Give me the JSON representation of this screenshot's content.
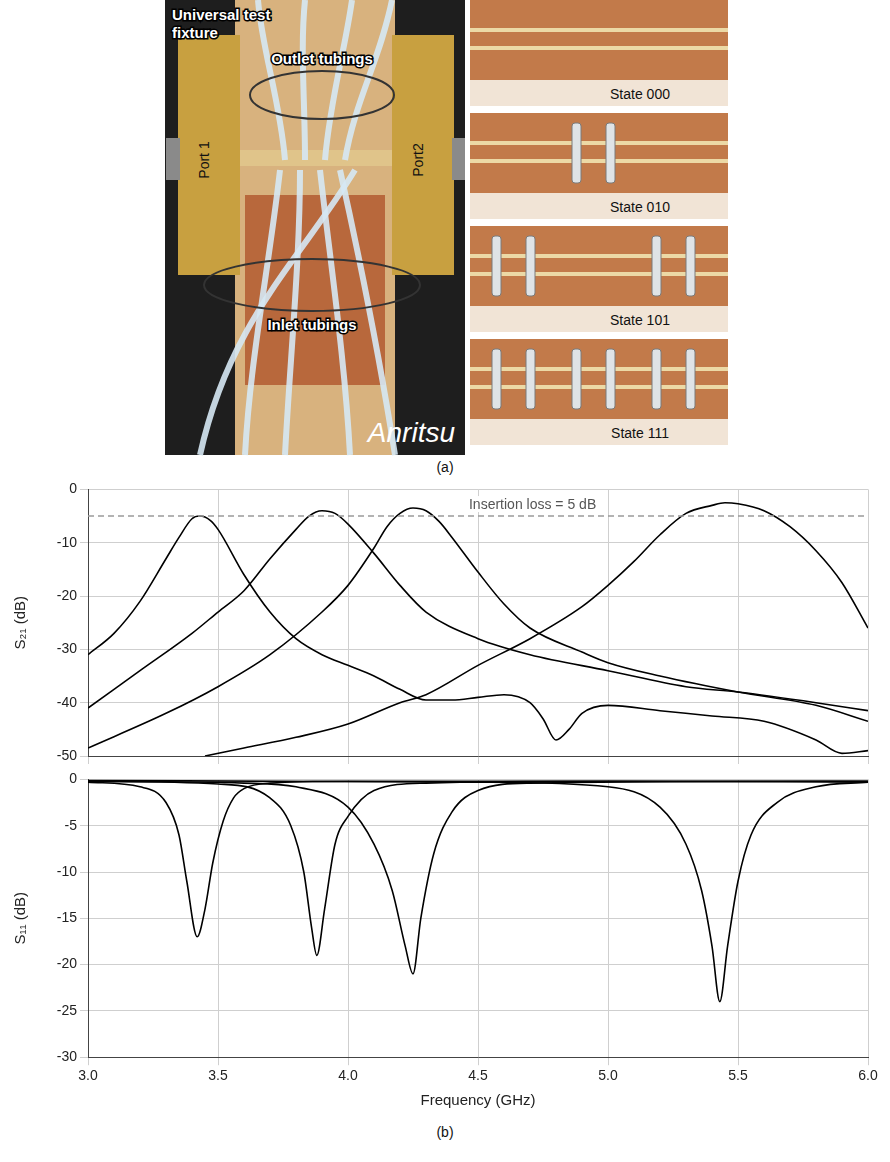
{
  "panel_a": {
    "label": "(a)",
    "photo_labels": {
      "fixture": "Universal test fixture",
      "outlet": "Outlet tubings",
      "inlet": "Inlet tubings",
      "port1": "Port 1",
      "port2": "Port2",
      "brand": "Anritsu"
    },
    "states": [
      "State 000",
      "State 010",
      "State 101",
      "State 111"
    ]
  },
  "panel_b": {
    "label": "(b)"
  },
  "chart_data": [
    {
      "type": "line",
      "ylabel": "S₂₁ (dB)",
      "xlim": [
        3,
        6
      ],
      "xticks": [
        3,
        3.5,
        4,
        4.5,
        5,
        5.5,
        6
      ],
      "ylim": [
        -50,
        0
      ],
      "yticks": [
        -50,
        -40,
        -30,
        -20,
        -10,
        0
      ],
      "grid": true,
      "tick_labels": "y",
      "annotations": [
        {
          "text": "Insertion loss = 5 dB",
          "y": -5,
          "line_style": "dashed"
        }
      ],
      "series": [
        {
          "color": "#000000",
          "line_style": "solid",
          "x": [
            3.0,
            3.1,
            3.2,
            3.3,
            3.35,
            3.4,
            3.43,
            3.47,
            3.5,
            3.6,
            3.7,
            3.8,
            3.9,
            4.0,
            4.1,
            4.2,
            4.3,
            4.4,
            4.5,
            4.6,
            4.7,
            4.75,
            4.8,
            4.85,
            4.9,
            5.0,
            5.2,
            5.4,
            5.6,
            5.8,
            5.9,
            6.0
          ],
          "values": [
            -31,
            -27,
            -21,
            -13,
            -9,
            -5.5,
            -5,
            -5.8,
            -7.5,
            -16,
            -23,
            -28,
            -31,
            -33,
            -35,
            -37.5,
            -39.5,
            -39.5,
            -39,
            -38.5,
            -40,
            -43,
            -47,
            -45,
            -42,
            -40.5,
            -41.5,
            -42.5,
            -43.5,
            -47,
            -49.5,
            -49
          ]
        },
        {
          "color": "#000000",
          "line_style": "solid",
          "x": [
            3.0,
            3.2,
            3.4,
            3.5,
            3.6,
            3.7,
            3.8,
            3.85,
            3.9,
            3.95,
            4.0,
            4.1,
            4.2,
            4.3,
            4.5,
            4.7,
            5.0,
            5.3,
            5.5,
            5.8,
            6.0
          ],
          "values": [
            -41,
            -34,
            -27,
            -23,
            -19,
            -13,
            -7.5,
            -5,
            -4,
            -4.5,
            -6.5,
            -12,
            -18,
            -23,
            -28,
            -31,
            -34,
            -37,
            -38,
            -40,
            -41.5
          ]
        },
        {
          "color": "#000000",
          "line_style": "solid",
          "x": [
            3.0,
            3.3,
            3.5,
            3.7,
            3.9,
            4.0,
            4.1,
            4.15,
            4.2,
            4.25,
            4.3,
            4.35,
            4.4,
            4.5,
            4.6,
            4.7,
            4.9,
            5.0,
            5.2,
            5.5,
            5.8,
            6.0
          ],
          "values": [
            -48.5,
            -42,
            -37,
            -31,
            -23,
            -18,
            -11,
            -7,
            -4.5,
            -3.5,
            -4,
            -6,
            -9,
            -15.5,
            -21.5,
            -26,
            -30.5,
            -32.5,
            -35,
            -38,
            -40.5,
            -43.5
          ]
        },
        {
          "color": "#000000",
          "line_style": "solid",
          "x": [
            3.45,
            3.6,
            3.8,
            4.0,
            4.2,
            4.3,
            4.5,
            4.7,
            4.9,
            5.0,
            5.1,
            5.2,
            5.3,
            5.4,
            5.45,
            5.5,
            5.6,
            5.7,
            5.8,
            5.9,
            6.0
          ],
          "values": [
            -50,
            -48.5,
            -46.5,
            -44,
            -40,
            -38.5,
            -33,
            -28,
            -22,
            -18,
            -13.5,
            -8.5,
            -4.5,
            -3,
            -2.5,
            -2.7,
            -4,
            -7,
            -11.5,
            -17.5,
            -26
          ]
        }
      ]
    },
    {
      "type": "line",
      "ylabel": "S₁₁ (dB)",
      "xlabel": "Frequency (GHz)",
      "xlim": [
        3,
        6
      ],
      "xticks": [
        {
          "value": 3,
          "label": "3.0"
        },
        3.5,
        {
          "value": 4,
          "label": "4.0"
        },
        4.5,
        {
          "value": 5,
          "label": "5.0"
        },
        5.5,
        {
          "value": 6,
          "label": "6.0"
        }
      ],
      "ylim": [
        -30,
        0
      ],
      "yticks": [
        -30,
        -25,
        -20,
        -15,
        -10,
        -5,
        0
      ],
      "grid": true,
      "series": [
        {
          "color": "#000000",
          "line_style": "solid",
          "x": [
            3.0,
            3.2,
            3.3,
            3.35,
            3.38,
            3.42,
            3.45,
            3.48,
            3.52,
            3.56,
            3.6,
            3.7,
            4.0,
            5.0,
            6.0
          ],
          "values": [
            -0.3,
            -0.8,
            -2.5,
            -6,
            -11,
            -17,
            -14,
            -9,
            -4.5,
            -2,
            -1,
            -0.4,
            -0.2,
            -0.2,
            -0.3
          ]
        },
        {
          "color": "#000000",
          "line_style": "solid",
          "x": [
            3.0,
            3.5,
            3.7,
            3.78,
            3.83,
            3.86,
            3.88,
            3.91,
            3.95,
            4.0,
            4.1,
            4.3,
            5.0,
            6.0
          ],
          "values": [
            -0.2,
            -0.5,
            -2,
            -5,
            -10,
            -16,
            -19,
            -14,
            -7,
            -4,
            -1.2,
            -0.4,
            -0.2,
            -0.2
          ]
        },
        {
          "color": "#000000",
          "line_style": "solid",
          "x": [
            3.0,
            3.6,
            3.8,
            4.0,
            4.1,
            4.17,
            4.22,
            4.25,
            4.28,
            4.33,
            4.4,
            4.5,
            4.7,
            6.0
          ],
          "values": [
            -0.2,
            -0.4,
            -0.8,
            -3,
            -7,
            -12,
            -18,
            -21,
            -15,
            -8,
            -3.5,
            -1.2,
            -0.4,
            -0.2
          ]
        },
        {
          "color": "#000000",
          "line_style": "solid",
          "x": [
            3.0,
            4.5,
            5.0,
            5.2,
            5.3,
            5.36,
            5.4,
            5.43,
            5.46,
            5.5,
            5.55,
            5.65,
            5.8,
            6.0
          ],
          "values": [
            -0.1,
            -0.3,
            -0.8,
            -3,
            -7,
            -12,
            -18,
            -24,
            -18,
            -11,
            -6,
            -2.5,
            -0.8,
            -0.3
          ]
        }
      ]
    }
  ]
}
